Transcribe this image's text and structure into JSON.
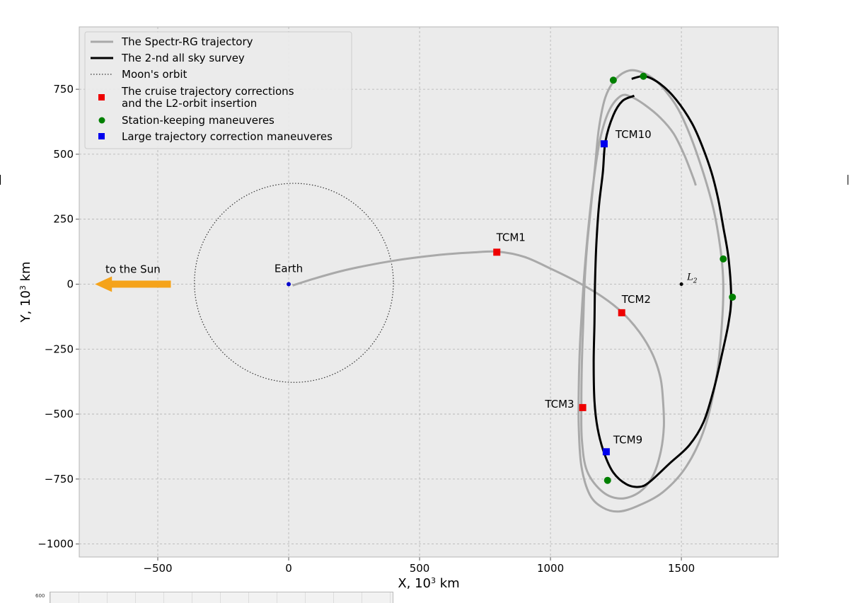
{
  "chart_data": {
    "type": "line",
    "xlabel_main": "X, 10",
    "xlabel_sup": "3",
    "xlabel_unit": " km",
    "ylabel_main": "Y, 10",
    "ylabel_sup": "3",
    "ylabel_unit": " km",
    "xlim": [
      -800,
      1870
    ],
    "ylim": [
      -1050,
      990
    ],
    "xticks": [
      -500,
      0,
      500,
      1000,
      1500
    ],
    "xtick_labels": [
      "−500",
      "0",
      "500",
      "1000",
      "1500"
    ],
    "yticks": [
      -1000,
      -750,
      -500,
      -250,
      0,
      250,
      500,
      750
    ],
    "ytick_labels": [
      "−1000",
      "−750",
      "−500",
      "−250",
      "0",
      "250",
      "500",
      "750"
    ],
    "grid": true,
    "legend_position": "top-left",
    "legend": [
      {
        "label": "The Spectr-RG trajectory",
        "style": "gray-line"
      },
      {
        "label": "The 2-nd all sky survey",
        "style": "black-line"
      },
      {
        "label": "Moon's orbit",
        "style": "dotted-line"
      },
      {
        "label": "The cruise trajectory corrections",
        "label2": "and the L2-orbit insertion",
        "style": "red-square"
      },
      {
        "label": "Station-keeping maneuveres",
        "style": "green-circle"
      },
      {
        "label": "Large trajectory correction maneuveres",
        "style": "blue-square"
      }
    ],
    "colors": {
      "trajectory": "#a9a9a9",
      "survey": "#000000",
      "moon": "#333333",
      "cruise": "#ee0000",
      "station": "#008000",
      "large": "#0000ee",
      "arrow": "#f5a31a",
      "earth": "#0000cc",
      "panel": "#ebebeb",
      "grid": "#b0b0b0"
    },
    "series": [
      {
        "name": "The Spectr-RG trajectory",
        "points": [
          [
            15,
            -5
          ],
          [
            100,
            22
          ],
          [
            200,
            50
          ],
          [
            300,
            72
          ],
          [
            400,
            90
          ],
          [
            500,
            104
          ],
          [
            600,
            115
          ],
          [
            700,
            122
          ],
          [
            800,
            125
          ],
          [
            900,
            105
          ],
          [
            1000,
            60
          ],
          [
            1100,
            10
          ],
          [
            1200,
            -50
          ],
          [
            1275,
            -110
          ],
          [
            1340,
            -185
          ],
          [
            1390,
            -270
          ],
          [
            1420,
            -360
          ],
          [
            1430,
            -450
          ],
          [
            1433,
            -550
          ],
          [
            1420,
            -650
          ],
          [
            1390,
            -740
          ],
          [
            1340,
            -800
          ],
          [
            1270,
            -825
          ],
          [
            1200,
            -800
          ],
          [
            1140,
            -720
          ],
          [
            1120,
            -600
          ],
          [
            1118,
            -450
          ],
          [
            1120,
            -300
          ],
          [
            1125,
            -150
          ],
          [
            1130,
            0
          ],
          [
            1140,
            150
          ],
          [
            1155,
            300
          ],
          [
            1170,
            450
          ],
          [
            1185,
            600
          ],
          [
            1210,
            720
          ],
          [
            1250,
            790
          ],
          [
            1300,
            822
          ],
          [
            1350,
            815
          ],
          [
            1400,
            785
          ],
          [
            1450,
            730
          ],
          [
            1500,
            650
          ],
          [
            1560,
            500
          ],
          [
            1620,
            300
          ],
          [
            1650,
            130
          ],
          [
            1660,
            0
          ],
          [
            1655,
            -150
          ],
          [
            1635,
            -350
          ],
          [
            1590,
            -550
          ],
          [
            1520,
            -700
          ],
          [
            1430,
            -800
          ],
          [
            1330,
            -855
          ],
          [
            1260,
            -875
          ],
          [
            1200,
            -860
          ],
          [
            1150,
            -810
          ],
          [
            1118,
            -700
          ],
          [
            1108,
            -550
          ],
          [
            1108,
            -400
          ],
          [
            1112,
            -250
          ],
          [
            1120,
            -100
          ],
          [
            1130,
            50
          ],
          [
            1145,
            220
          ],
          [
            1165,
            400
          ],
          [
            1190,
            560
          ],
          [
            1225,
            670
          ],
          [
            1270,
            725
          ],
          [
            1310,
            720
          ],
          [
            1360,
            690
          ],
          [
            1420,
            640
          ],
          [
            1470,
            580
          ],
          [
            1510,
            500
          ],
          [
            1545,
            410
          ],
          [
            1555,
            380
          ]
        ]
      },
      {
        "name": "The 2-nd all sky survey",
        "points": [
          [
            1310,
            790
          ],
          [
            1360,
            800
          ],
          [
            1420,
            770
          ],
          [
            1480,
            710
          ],
          [
            1540,
            620
          ],
          [
            1580,
            530
          ],
          [
            1615,
            430
          ],
          [
            1640,
            330
          ],
          [
            1660,
            220
          ],
          [
            1680,
            100
          ],
          [
            1690,
            -50
          ],
          [
            1680,
            -150
          ],
          [
            1655,
            -270
          ],
          [
            1625,
            -400
          ],
          [
            1585,
            -530
          ],
          [
            1530,
            -620
          ],
          [
            1455,
            -690
          ],
          [
            1380,
            -760
          ],
          [
            1340,
            -780
          ],
          [
            1290,
            -770
          ],
          [
            1240,
            -725
          ],
          [
            1205,
            -650
          ],
          [
            1180,
            -555
          ],
          [
            1168,
            -450
          ],
          [
            1165,
            -300
          ],
          [
            1168,
            -150
          ],
          [
            1170,
            0
          ],
          [
            1175,
            150
          ],
          [
            1185,
            300
          ],
          [
            1200,
            430
          ],
          [
            1210,
            550
          ],
          [
            1240,
            650
          ],
          [
            1275,
            705
          ],
          [
            1320,
            725
          ]
        ]
      }
    ],
    "moon_orbit": {
      "center": [
        20,
        5
      ],
      "radius": 380
    },
    "earth": {
      "x": 0,
      "y": 0,
      "label": "Earth"
    },
    "l2_point": {
      "x": 1500,
      "y": 0,
      "label_main": "L",
      "label_sub": "2"
    },
    "sun_arrow": {
      "x_from": -450,
      "x_to": -740,
      "y": 0,
      "label": "to the Sun"
    },
    "markers": {
      "cruise": [
        {
          "x": 795,
          "y": 123,
          "label": "TCM1"
        },
        {
          "x": 1272,
          "y": -110,
          "label": "TCM2"
        },
        {
          "x": 1123,
          "y": -475,
          "label": "TCM3"
        }
      ],
      "large": [
        {
          "x": 1205,
          "y": 540,
          "label": "TCM10"
        },
        {
          "x": 1213,
          "y": -645,
          "label": "TCM9"
        }
      ],
      "station": [
        {
          "x": 1240,
          "y": 785
        },
        {
          "x": 1355,
          "y": 800
        },
        {
          "x": 1660,
          "y": 97
        },
        {
          "x": 1695,
          "y": -50
        },
        {
          "x": 1218,
          "y": -755
        }
      ]
    }
  },
  "thumbnail": {
    "label": "600"
  }
}
